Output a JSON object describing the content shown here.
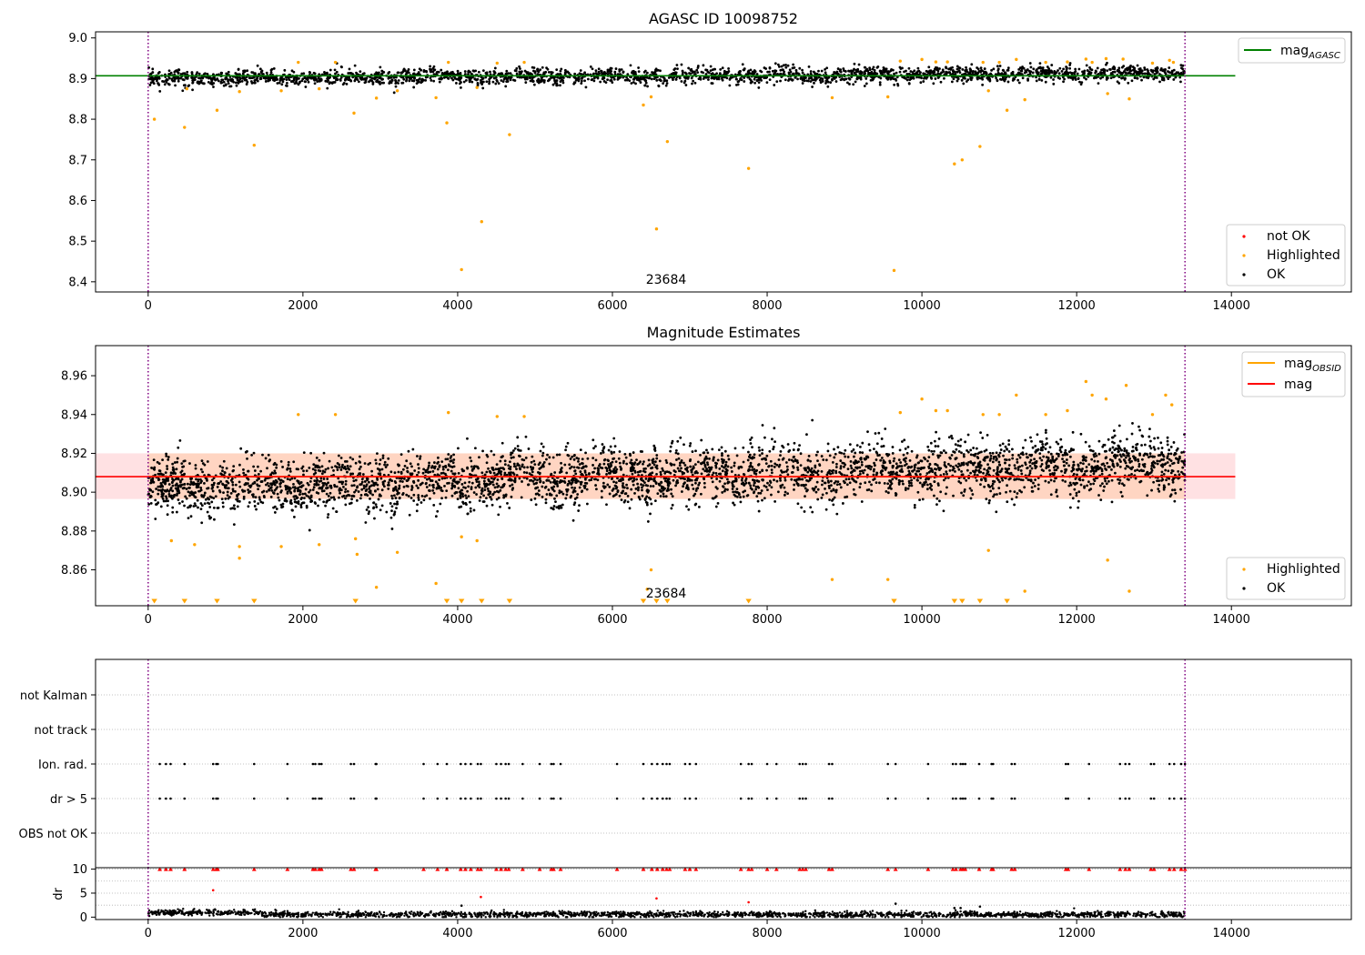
{
  "colors": {
    "ok": "#000000",
    "highlighted": "#ffa500",
    "not_ok": "#ff0000",
    "mag_agasc": "#008000",
    "mag": "#ff0000",
    "mag_obsid": "#ffa500",
    "band_fill": "#ffb3b8",
    "band_fill_obs": "#ffc79a",
    "obs_boundary": "#800080",
    "grid": "#b0b0b0"
  },
  "chart_data": [
    {
      "type": "scatter",
      "title": "AGASC ID 10098752",
      "xlim": [
        -680,
        15550
      ],
      "ylim": [
        8.375,
        9.015
      ],
      "xticks": [
        0,
        2000,
        4000,
        6000,
        8000,
        10000,
        12000,
        14000
      ],
      "xtick_labels": [
        "0",
        "2000",
        "4000",
        "6000",
        "8000",
        "10000",
        "12000",
        "14000"
      ],
      "yticks": [
        8.4,
        8.5,
        8.6,
        8.7,
        8.8,
        8.9,
        9.0
      ],
      "ytick_labels": [
        "8.4",
        "8.5",
        "8.6",
        "8.7",
        "8.8",
        "8.9",
        "9.0"
      ],
      "obs_boundaries": [
        0,
        13400
      ],
      "annotation": {
        "text": "23684",
        "x": 6700,
        "y": 8.385
      },
      "mag_agasc": {
        "value": 8.907,
        "x_range": [
          -680,
          14050
        ]
      },
      "ok_band": {
        "x": [
          0,
          13400
        ],
        "center_start": 8.9,
        "center_end": 8.913,
        "spread": 0.012
      },
      "highlighted": [
        [
          80,
          8.8
        ],
        [
          470,
          8.78
        ],
        [
          890,
          8.822
        ],
        [
          1370,
          8.736
        ],
        [
          1180,
          8.868
        ],
        [
          2660,
          8.815
        ],
        [
          2950,
          8.852
        ],
        [
          3860,
          8.791
        ],
        [
          4050,
          8.43
        ],
        [
          4310,
          8.548
        ],
        [
          4670,
          8.762
        ],
        [
          6400,
          8.835
        ],
        [
          6570,
          8.53
        ],
        [
          6710,
          8.745
        ],
        [
          7760,
          8.679
        ],
        [
          9640,
          8.428
        ],
        [
          10420,
          8.69
        ],
        [
          10520,
          8.7
        ],
        [
          10750,
          8.733
        ],
        [
          11100,
          8.822
        ],
        [
          11330,
          8.848
        ],
        [
          12400,
          8.863
        ],
        [
          12680,
          8.85
        ],
        [
          3720,
          8.853
        ],
        [
          1720,
          8.87
        ],
        [
          6500,
          8.855
        ],
        [
          2210,
          8.875
        ],
        [
          4250,
          8.878
        ],
        [
          3220,
          8.87
        ],
        [
          8840,
          8.853
        ],
        [
          9560,
          8.855
        ],
        [
          10860,
          8.87
        ],
        [
          500,
          8.875
        ],
        [
          1940,
          8.94
        ],
        [
          2420,
          8.94
        ],
        [
          3880,
          8.94
        ],
        [
          4510,
          8.938
        ],
        [
          4860,
          8.94
        ],
        [
          9720,
          8.943
        ],
        [
          10000,
          8.947
        ],
        [
          10180,
          8.941
        ],
        [
          10330,
          8.941
        ],
        [
          10790,
          8.94
        ],
        [
          11000,
          8.94
        ],
        [
          11220,
          8.947
        ],
        [
          11600,
          8.94
        ],
        [
          11880,
          8.941
        ],
        [
          12120,
          8.948
        ],
        [
          12200,
          8.94
        ],
        [
          12380,
          8.949
        ],
        [
          12600,
          8.948
        ],
        [
          12980,
          8.938
        ],
        [
          13200,
          8.945
        ],
        [
          13250,
          8.94
        ]
      ],
      "not_ok": [],
      "legends": [
        {
          "position": "top-right",
          "entries": [
            {
              "label": "mag",
              "subscript": "AGASC",
              "kind": "line"
            }
          ]
        },
        {
          "position": "bottom-right",
          "entries": [
            {
              "label": "not OK",
              "kind": "marker"
            },
            {
              "label": "Highlighted",
              "kind": "marker"
            },
            {
              "label": "OK",
              "kind": "marker"
            }
          ]
        }
      ]
    },
    {
      "type": "scatter",
      "title": "Magnitude Estimates",
      "xlim": [
        -680,
        15550
      ],
      "ylim": [
        8.8415,
        8.9755
      ],
      "xticks": [
        0,
        2000,
        4000,
        6000,
        8000,
        10000,
        12000,
        14000
      ],
      "xtick_labels": [
        "0",
        "2000",
        "4000",
        "6000",
        "8000",
        "10000",
        "12000",
        "14000"
      ],
      "yticks": [
        8.86,
        8.88,
        8.9,
        8.92,
        8.94,
        8.96
      ],
      "ytick_labels": [
        "8.86",
        "8.88",
        "8.90",
        "8.92",
        "8.94",
        "8.96"
      ],
      "obs_boundaries": [
        0,
        13400
      ],
      "annotation": {
        "text": "23684",
        "x": 6700,
        "y": 8.8435
      },
      "mag": {
        "value": 8.908,
        "band": [
          8.8965,
          8.92
        ],
        "x_range": [
          -680,
          14050
        ]
      },
      "mag_obsid": {
        "value": 8.908,
        "band": [
          8.8965,
          8.92
        ],
        "x_range": [
          0,
          13400
        ]
      },
      "ok_band": {
        "x": [
          0,
          13400
        ],
        "center_start": 8.902,
        "center_end": 8.915,
        "spread": 0.009
      },
      "highlighted": [
        [
          1940,
          8.94
        ],
        [
          2420,
          8.94
        ],
        [
          3880,
          8.941
        ],
        [
          4510,
          8.939
        ],
        [
          4860,
          8.939
        ],
        [
          9720,
          8.941
        ],
        [
          10000,
          8.948
        ],
        [
          10180,
          8.942
        ],
        [
          10330,
          8.942
        ],
        [
          10790,
          8.94
        ],
        [
          11000,
          8.94
        ],
        [
          11220,
          8.95
        ],
        [
          11600,
          8.94
        ],
        [
          11880,
          8.942
        ],
        [
          12120,
          8.957
        ],
        [
          12200,
          8.95
        ],
        [
          12380,
          8.948
        ],
        [
          12640,
          8.955
        ],
        [
          12980,
          8.94
        ],
        [
          13150,
          8.95
        ],
        [
          13230,
          8.945
        ],
        [
          300,
          8.875
        ],
        [
          600,
          8.873
        ],
        [
          1180,
          8.872
        ],
        [
          1180,
          8.866
        ],
        [
          1720,
          8.872
        ],
        [
          2210,
          8.873
        ],
        [
          2680,
          8.876
        ],
        [
          2700,
          8.868
        ],
        [
          3220,
          8.869
        ],
        [
          2950,
          8.851
        ],
        [
          3720,
          8.853
        ],
        [
          4250,
          8.875
        ],
        [
          4050,
          8.877
        ],
        [
          6500,
          8.86
        ],
        [
          6450,
          8.85
        ],
        [
          8840,
          8.855
        ],
        [
          9560,
          8.855
        ],
        [
          10860,
          8.87
        ],
        [
          11330,
          8.849
        ],
        [
          12400,
          8.865
        ],
        [
          12680,
          8.849
        ]
      ],
      "below_range": [
        80,
        470,
        890,
        1370,
        2680,
        3860,
        4050,
        4310,
        4670,
        6400,
        6570,
        6710,
        7760,
        9640,
        10420,
        10520,
        10750,
        11100
      ],
      "legends": [
        {
          "position": "top-right",
          "entries": [
            {
              "label": "mag",
              "subscript": "OBSID",
              "kind": "line"
            },
            {
              "label": "mag",
              "subscript": "",
              "kind": "line"
            }
          ]
        },
        {
          "position": "bottom-right",
          "entries": [
            {
              "label": "Highlighted",
              "kind": "marker"
            },
            {
              "label": "OK",
              "kind": "marker"
            }
          ]
        }
      ]
    },
    {
      "type": "scatter",
      "title": "",
      "xlim": [
        -680,
        15550
      ],
      "categories": [
        "not Kalman",
        "not track",
        "Ion. rad.",
        "dr > 5",
        "OBS not OK"
      ],
      "obs_boundaries": [
        0,
        13400
      ],
      "flag_times": [
        150,
        230,
        290,
        470,
        840,
        880,
        900,
        1370,
        1800,
        2130,
        2160,
        2210,
        2240,
        2620,
        2660,
        2940,
        2950,
        3560,
        3740,
        3860,
        4040,
        4100,
        4170,
        4260,
        4300,
        4500,
        4560,
        4620,
        4660,
        4840,
        5060,
        5210,
        5240,
        5330,
        6060,
        6400,
        6510,
        6580,
        6650,
        6700,
        6740,
        6940,
        7000,
        7080,
        7660,
        7760,
        7800,
        8000,
        8120,
        8420,
        8460,
        8500,
        8800,
        8840,
        9560,
        9660,
        10080,
        10400,
        10440,
        10500,
        10530,
        10560,
        10740,
        10900,
        10920,
        11160,
        11200,
        11860,
        11890,
        12160,
        12560,
        12630,
        12680,
        12960,
        13000,
        13200,
        13260,
        13350,
        13400
      ],
      "flag_rows": [
        "Ion. rad.",
        "dr > 5"
      ]
    },
    {
      "type": "scatter",
      "title": "",
      "xlim": [
        -680,
        15550
      ],
      "ylim": [
        -0.5,
        10.3
      ],
      "ylabel": "dr",
      "xticks": [
        0,
        2000,
        4000,
        6000,
        8000,
        10000,
        12000,
        14000
      ],
      "xtick_labels": [
        "0",
        "2000",
        "4000",
        "6000",
        "8000",
        "10000",
        "12000",
        "14000"
      ],
      "yticks": [
        0,
        5,
        10
      ],
      "ytick_labels": [
        "0",
        "5",
        "10"
      ],
      "gridlines": [
        2.5,
        5,
        7.5,
        10
      ],
      "obs_boundaries": [
        0,
        13400
      ],
      "capped_value": 10,
      "outliers": [
        [
          840,
          5.6
        ],
        [
          4050,
          2.4
        ],
        [
          4300,
          4.2
        ],
        [
          6570,
          3.9
        ],
        [
          7760,
          3.1
        ],
        [
          9660,
          2.8
        ],
        [
          10420,
          1.9
        ],
        [
          10500,
          1.9
        ],
        [
          10750,
          2.2
        ]
      ]
    }
  ]
}
